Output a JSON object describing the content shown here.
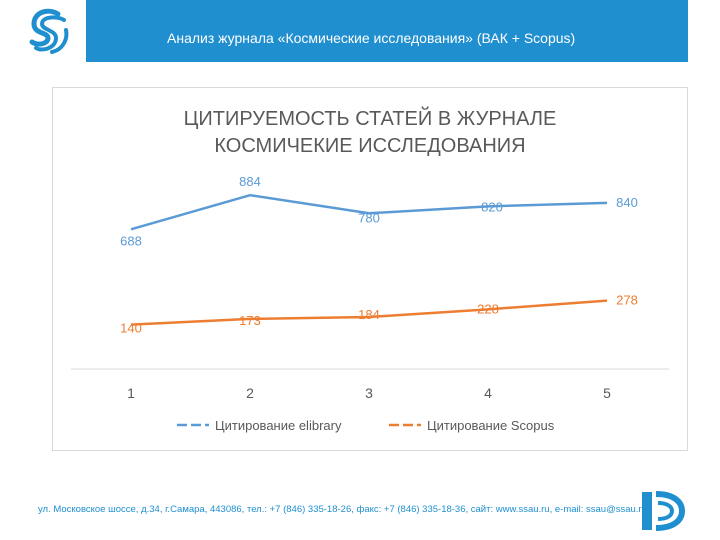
{
  "header": {
    "title": "Анализ журнала «Космические исследования» (ВАК + Scopus)"
  },
  "colors": {
    "header_bg": "#1f8fd0",
    "series_elibrary": "#5b9bd5",
    "series_scopus": "#ed7d31",
    "title_text": "#595959"
  },
  "footer": {
    "text": "ул. Московское шоссе, д.34, г.Самара, 443086, тел.: +7 (846) 335-18-26, факс: +7 (846) 335-18-36, сайт: www.ssau.ru, e-mail: ssau@ssau.ru"
  },
  "chart_data": {
    "type": "line",
    "title_line1": "ЦИТИРУЕМОСТЬ СТАТЕЙ В ЖУРНАЛЕ",
    "title_line2": "КОСМИЧЕКИЕ ИССЛЕДОВАНИЯ",
    "categories": [
      "1",
      "2",
      "3",
      "4",
      "5"
    ],
    "series": [
      {
        "name": "Цитирование elibrary",
        "values": [
          688,
          884,
          780,
          820,
          840
        ],
        "color": "#5b9bd5"
      },
      {
        "name": "Цитирование Scopus",
        "values": [
          140,
          173,
          184,
          228,
          278
        ],
        "color": "#ed7d31"
      }
    ],
    "ylim": [
      0,
      1000
    ],
    "grid": false,
    "legend_position": "bottom"
  }
}
